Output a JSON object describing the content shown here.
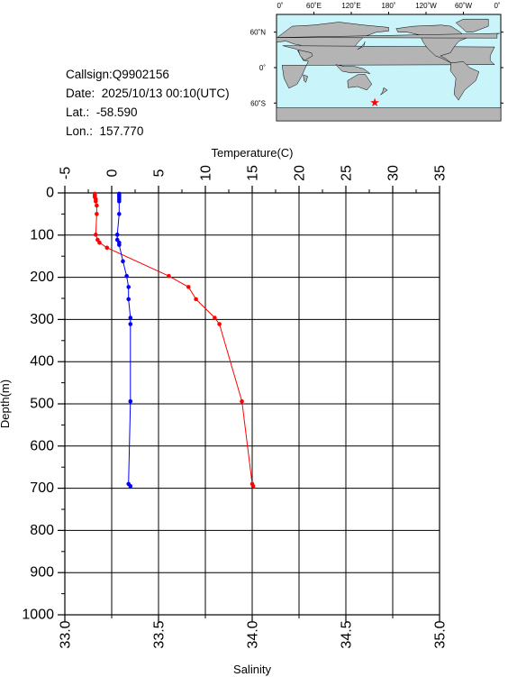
{
  "info": {
    "callsign": "Callsign:Q9902156",
    "date": "Date:  2025/10/13 00:10(UTC)",
    "lat": "Lat.:  -58.590",
    "lon": "Lon.:  157.770"
  },
  "map": {
    "lon_labels": [
      "0˚",
      "60˚E",
      "120˚E",
      "180˚",
      "120˚W",
      "60˚W",
      "0˚"
    ],
    "lat_labels": [
      "60˚N",
      "0˚",
      "60˚S"
    ],
    "ocean_color": "#c8f4fa",
    "land_color": "#b4b4b4",
    "marker_color": "#ff0000",
    "marker_lon": 157.77,
    "marker_lat": -58.59
  },
  "chart_data": {
    "type": "line",
    "title": "",
    "xlabel_top": "Temperature(C)",
    "xlabel_bottom": "Salinity",
    "ylabel": "Depth(m)",
    "temperature_ticks": [
      "-5",
      "0",
      "5",
      "10",
      "15",
      "20",
      "25",
      "30",
      "35"
    ],
    "temperature_range": [
      -5,
      35
    ],
    "salinity_ticks": [
      "33.0",
      "33.5",
      "34.0",
      "34.5",
      "35.0"
    ],
    "salinity_range": [
      33.0,
      35.0
    ],
    "depth_ticks": [
      "0",
      "100",
      "200",
      "300",
      "400",
      "500",
      "600",
      "700",
      "800",
      "900",
      "1000"
    ],
    "depth_range": [
      0,
      1000
    ],
    "grid": true,
    "series": [
      {
        "name": "Temperature",
        "color": "#ff0000",
        "points": [
          {
            "value": -1.8,
            "depth": 2
          },
          {
            "value": -1.8,
            "depth": 6
          },
          {
            "value": -1.8,
            "depth": 10
          },
          {
            "value": -1.7,
            "depth": 15
          },
          {
            "value": -1.7,
            "depth": 20
          },
          {
            "value": -1.6,
            "depth": 30
          },
          {
            "value": -1.6,
            "depth": 50
          },
          {
            "value": -1.7,
            "depth": 99
          },
          {
            "value": -1.5,
            "depth": 111
          },
          {
            "value": -1.3,
            "depth": 118
          },
          {
            "value": -0.5,
            "depth": 130
          },
          {
            "value": 6.1,
            "depth": 197
          },
          {
            "value": 8.2,
            "depth": 223
          },
          {
            "value": 9.0,
            "depth": 252
          },
          {
            "value": 11.0,
            "depth": 296
          },
          {
            "value": 11.5,
            "depth": 311
          },
          {
            "value": 13.9,
            "depth": 494
          },
          {
            "value": 15.0,
            "depth": 690
          },
          {
            "value": 15.1,
            "depth": 695
          }
        ]
      },
      {
        "name": "Salinity",
        "color": "#0000ff",
        "points": [
          {
            "value": 33.29,
            "depth": 2
          },
          {
            "value": 33.29,
            "depth": 6
          },
          {
            "value": 33.29,
            "depth": 10
          },
          {
            "value": 33.29,
            "depth": 15
          },
          {
            "value": 33.29,
            "depth": 20
          },
          {
            "value": 33.29,
            "depth": 50
          },
          {
            "value": 33.28,
            "depth": 99
          },
          {
            "value": 33.28,
            "depth": 111
          },
          {
            "value": 33.29,
            "depth": 118
          },
          {
            "value": 33.29,
            "depth": 123
          },
          {
            "value": 33.31,
            "depth": 162
          },
          {
            "value": 33.33,
            "depth": 197
          },
          {
            "value": 33.34,
            "depth": 223
          },
          {
            "value": 33.34,
            "depth": 252
          },
          {
            "value": 33.35,
            "depth": 296
          },
          {
            "value": 33.35,
            "depth": 311
          },
          {
            "value": 33.35,
            "depth": 494
          },
          {
            "value": 33.34,
            "depth": 690
          },
          {
            "value": 33.35,
            "depth": 695
          }
        ]
      }
    ]
  }
}
